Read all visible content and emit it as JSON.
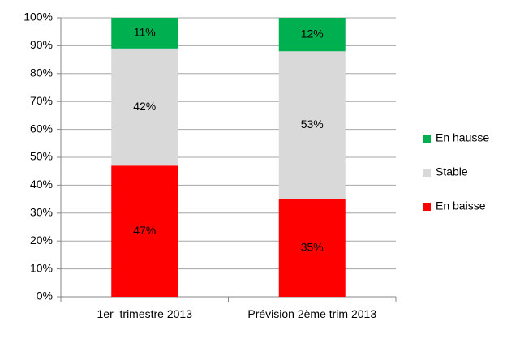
{
  "chart_data": {
    "type": "stacked_bar",
    "categories": [
      "1er  trimestre 2013",
      "Prévision 2ème trim 2013"
    ],
    "series": [
      {
        "name": "En baisse",
        "color": "#ff0000",
        "values": [
          47,
          35
        ],
        "value_labels": [
          "47%",
          "35%"
        ]
      },
      {
        "name": "Stable",
        "color": "#d9d9d9",
        "values": [
          42,
          53
        ],
        "value_labels": [
          "42%",
          "53%"
        ]
      },
      {
        "name": "En hausse",
        "color": "#00b050",
        "values": [
          11,
          12
        ],
        "value_labels": [
          "11%",
          "12%"
        ]
      }
    ],
    "ylim": [
      0,
      100
    ],
    "yticks": [
      {
        "value": 0,
        "label": "0%"
      },
      {
        "value": 10,
        "label": "10%"
      },
      {
        "value": 20,
        "label": "20%"
      },
      {
        "value": 30,
        "label": "30%"
      },
      {
        "value": 40,
        "label": "40%"
      },
      {
        "value": 50,
        "label": "50%"
      },
      {
        "value": 60,
        "label": "60%"
      },
      {
        "value": 70,
        "label": "70%"
      },
      {
        "value": 80,
        "label": "80%"
      },
      {
        "value": 90,
        "label": "90%"
      },
      {
        "value": 100,
        "label": "100%"
      }
    ],
    "grid": true,
    "legend": "right"
  }
}
